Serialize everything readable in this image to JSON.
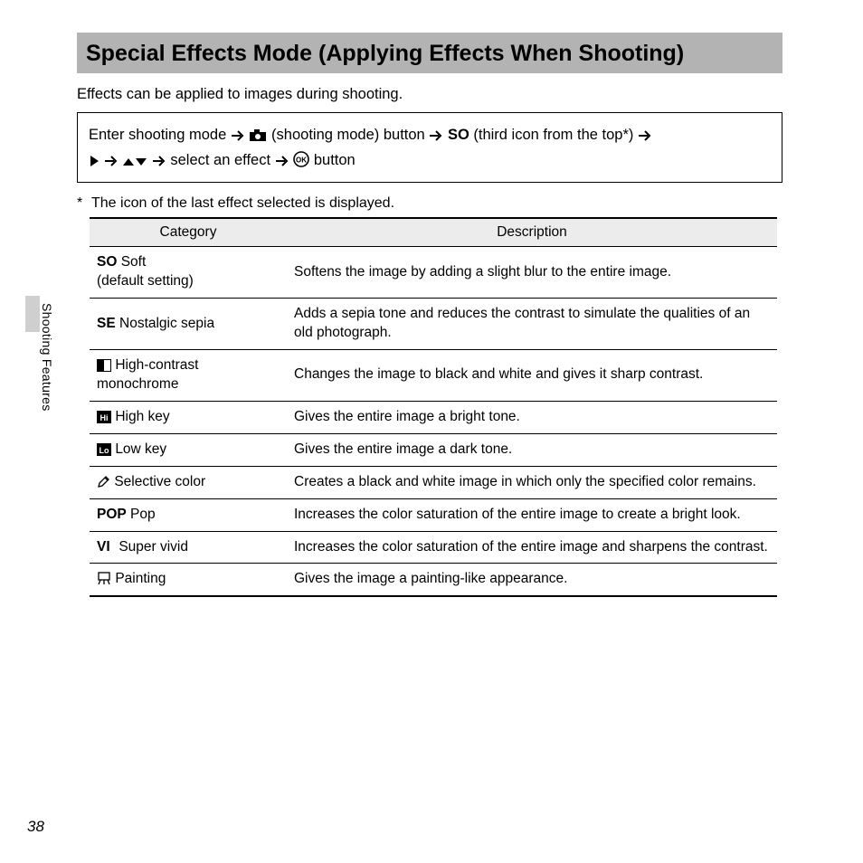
{
  "title": "Special Effects Mode (Applying Effects When Shooting)",
  "intro": "Effects can be applied to images during shooting.",
  "nav": {
    "prefix": "Enter shooting mode",
    "shootingModeLabel": "(shooting mode) button",
    "thirdIconLabel": "(third icon from the top*)",
    "selectEffect": "select an effect",
    "buttonLabel": "button"
  },
  "footnote": "The icon of the last effect selected is displayed.",
  "columns": {
    "cat": "Category",
    "desc": "Description"
  },
  "rows": [
    {
      "glyph": "SO",
      "iconType": "text",
      "name": "Soft",
      "extra": "(default setting)",
      "desc": "Softens the image by adding a slight blur to the entire image."
    },
    {
      "glyph": "SE",
      "iconType": "text",
      "name": "Nostalgic sepia",
      "desc": "Adds a sepia tone and reduces the contrast to simulate the qualities of an old photograph."
    },
    {
      "glyph": "hc",
      "iconType": "hc",
      "name": "High-contrast monochrome",
      "desc": "Changes the image to black and white and gives it sharp contrast."
    },
    {
      "glyph": "hi",
      "iconType": "hi",
      "name": "High key",
      "desc": "Gives the entire image a bright tone."
    },
    {
      "glyph": "lo",
      "iconType": "lo",
      "name": "Low key",
      "desc": "Gives the entire image a dark tone."
    },
    {
      "glyph": "sc",
      "iconType": "pencil",
      "name": "Selective color",
      "desc": "Creates a black and white image in which only the specified color remains."
    },
    {
      "glyph": "POP",
      "iconType": "text",
      "name": "Pop",
      "desc": "Increases the color saturation of the entire image to create a bright look."
    },
    {
      "glyph": "VI",
      "iconType": "text",
      "name": "Super vivid",
      "desc": "Increases the color saturation of the entire image and sharpens the contrast."
    },
    {
      "glyph": "pt",
      "iconType": "easel",
      "name": "Painting",
      "desc": "Gives the image a painting-like appearance."
    }
  ],
  "sideLabel": "Shooting Features",
  "pageNumber": "38",
  "style": {
    "titleBg": "#b3b3b3",
    "tableHeaderBg": "#ececec",
    "borderColor": "#000000",
    "textColor": "#000000",
    "bodyBg": "#ffffff",
    "sideTabBg": "#cfcfcf",
    "titleFontSize": 25,
    "bodyFontSize": 16.5,
    "tableFontSize": 15.5,
    "tableWidth": 760,
    "catColWidth": 218
  }
}
